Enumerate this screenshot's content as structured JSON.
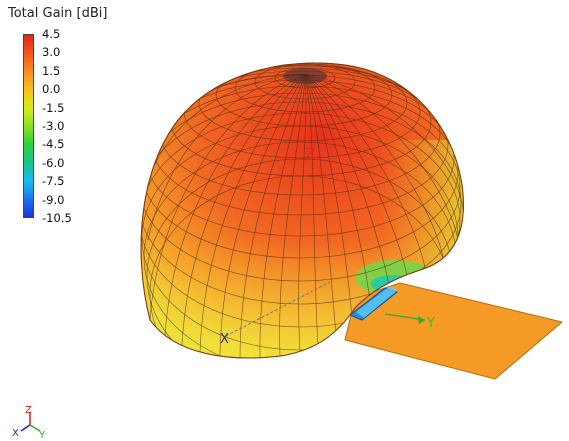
{
  "legend": {
    "title": "Total Gain [dBi]",
    "ticks": [
      "4.5",
      "3.0",
      "1.5",
      "0.0",
      "-1.5",
      "-3.0",
      "-4.5",
      "-6.0",
      "-7.5",
      "-9.0",
      "-10.5"
    ],
    "colors": [
      "#e8221b",
      "#f2571e",
      "#f88c1e",
      "#f5c21a",
      "#d8ec17",
      "#8ae41f",
      "#2fd23a",
      "#16c58a",
      "#16bff0",
      "#1a76ee",
      "#1a32d8"
    ]
  },
  "axes": {
    "x_label": "X",
    "y_label": "Y",
    "z_label": "Z"
  },
  "triad": {
    "x_label": "X",
    "y_label": "Y",
    "z_label": "Z"
  },
  "colors": {
    "pattern_main": "#f06a22",
    "pattern_mid": "#f7a92a",
    "pattern_low": "#e8e43a",
    "ground_plane": "#f59a25",
    "feed": "#1e8fe0"
  }
}
